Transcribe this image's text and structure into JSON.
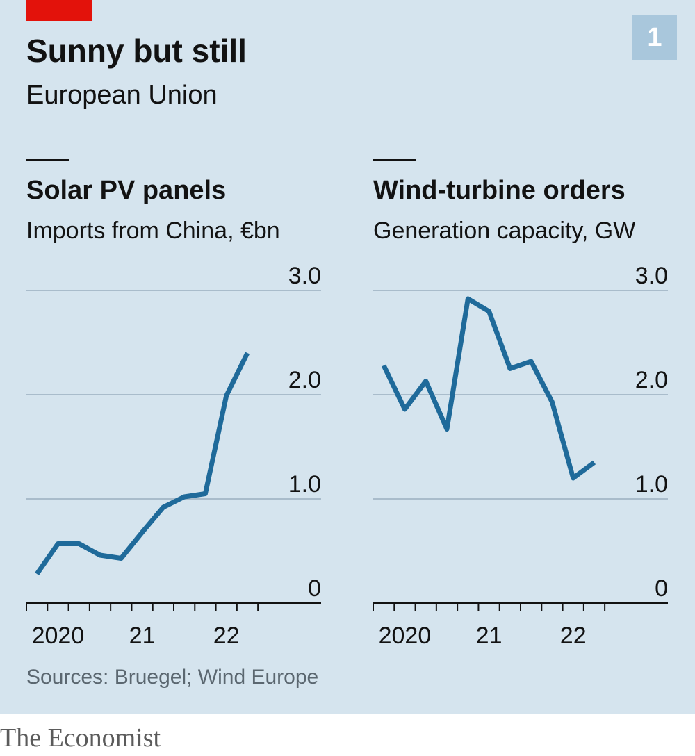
{
  "title": "Sunny but still",
  "subtitle": "European Union",
  "chart_number": "1",
  "source": "Sources: Bruegel; Wind Europe",
  "brand": "The Economist",
  "colors": {
    "background": "#d5e4ee",
    "line": "#1f6a9a",
    "grid": "#a9bccb",
    "accent_red": "#e3120b",
    "number_box": "#a9c7dc"
  },
  "chart_data": [
    {
      "type": "line",
      "title": "Solar PV panels",
      "subtitle": "Imports from China, €bn",
      "ylim": [
        0,
        3.0
      ],
      "y_ticks": [
        0,
        1.0,
        2.0,
        3.0
      ],
      "y_tick_labels": [
        "0",
        "1.0",
        "2.0",
        "3.0"
      ],
      "x_tick_labels": [
        "2020",
        "21",
        "22"
      ],
      "x_label_quarters": [
        1.5,
        5.5,
        9.5
      ],
      "quarters_total": 14,
      "grid": true,
      "series": [
        {
          "x": [
            0.5,
            1.5,
            2.5,
            3.5,
            4.5,
            5.5,
            6.5,
            7.5,
            8.5,
            9.5,
            10.5
          ],
          "values": [
            0.28,
            0.57,
            0.57,
            0.46,
            0.43,
            0.68,
            0.92,
            1.02,
            1.05,
            1.99,
            2.4
          ]
        }
      ]
    },
    {
      "type": "line",
      "title": "Wind-turbine orders",
      "subtitle": "Generation capacity, GW",
      "ylim": [
        0,
        3.0
      ],
      "y_ticks": [
        0,
        1.0,
        2.0,
        3.0
      ],
      "y_tick_labels": [
        "0",
        "1.0",
        "2.0",
        "3.0"
      ],
      "x_tick_labels": [
        "2020",
        "21",
        "22"
      ],
      "x_label_quarters": [
        1.5,
        5.5,
        9.5
      ],
      "quarters_total": 14,
      "grid": true,
      "series": [
        {
          "x": [
            0.5,
            1.5,
            2.5,
            3.5,
            4.5,
            5.5,
            6.5,
            7.5,
            8.5,
            9.5,
            10.5
          ],
          "values": [
            2.28,
            1.86,
            2.13,
            1.67,
            2.92,
            2.8,
            2.25,
            2.32,
            1.93,
            1.2,
            1.35
          ]
        }
      ]
    }
  ]
}
